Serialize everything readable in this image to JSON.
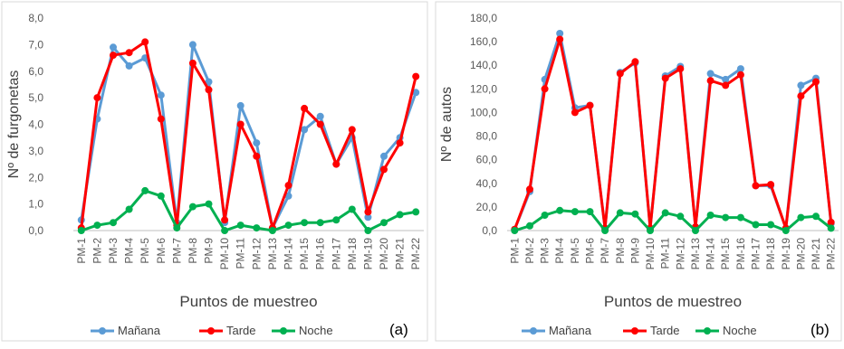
{
  "chart_data": [
    {
      "type": "line",
      "panel_label": "(a)",
      "xlabel": "Puntos de muestreo",
      "ylabel": "Nº de furgonetas",
      "ylim": [
        0,
        8
      ],
      "yticks": [
        "0,0",
        "1,0",
        "2,0",
        "3,0",
        "4,0",
        "5,0",
        "6,0",
        "7,0",
        "8,0"
      ],
      "grid": false,
      "legend_position": "bottom",
      "categories": [
        "PM-1",
        "PM-2",
        "PM-3",
        "PM-4",
        "PM-5",
        "PM-6",
        "PM-7",
        "PM-8",
        "PM-9",
        "PM-10",
        "PM-11",
        "PM-12",
        "PM-13",
        "PM-14",
        "PM-15",
        "PM-16",
        "PM-17",
        "PM-18",
        "PM-19",
        "PM-20",
        "PM-21",
        "PM-22"
      ],
      "series": [
        {
          "name": "Mañana",
          "color": "#5b9bd5",
          "values": [
            0.4,
            4.2,
            6.9,
            6.2,
            6.5,
            5.1,
            0.3,
            7.0,
            5.6,
            0.3,
            4.7,
            3.3,
            0.1,
            1.3,
            3.8,
            4.3,
            2.5,
            3.5,
            0.5,
            2.8,
            3.5,
            5.2
          ]
        },
        {
          "name": "Tarde",
          "color": "#ff0000",
          "values": [
            0.1,
            5.0,
            6.6,
            6.7,
            7.1,
            4.2,
            0.2,
            6.3,
            5.3,
            0.4,
            4.0,
            2.8,
            0.1,
            1.7,
            4.6,
            4.0,
            2.5,
            3.8,
            0.7,
            2.3,
            3.3,
            5.8
          ]
        },
        {
          "name": "Noche",
          "color": "#00b050",
          "values": [
            0.0,
            0.2,
            0.3,
            0.8,
            1.5,
            1.3,
            0.1,
            0.9,
            1.0,
            0.0,
            0.2,
            0.1,
            0.0,
            0.2,
            0.3,
            0.3,
            0.4,
            0.8,
            0.0,
            0.3,
            0.6,
            0.7
          ]
        }
      ]
    },
    {
      "type": "line",
      "panel_label": "(b)",
      "xlabel": "Puntos de muestreo",
      "ylabel": "Nº de autos",
      "ylim": [
        0,
        180
      ],
      "yticks": [
        "0,0",
        "20,0",
        "40,0",
        "60,0",
        "80,0",
        "100,0",
        "120,0",
        "140,0",
        "160,0",
        "180,0"
      ],
      "grid": false,
      "legend_position": "bottom",
      "categories": [
        "PM-1",
        "PM-2",
        "PM-3",
        "PM-4",
        "PM-5",
        "PM-6",
        "PM-7",
        "PM-8",
        "PM-9",
        "PM-10",
        "PM-11",
        "PM-12",
        "PM-13",
        "PM-14",
        "PM-15",
        "PM-16",
        "PM-17",
        "PM-18",
        "PM-19",
        "PM-20",
        "PM-21",
        "PM-22"
      ],
      "series": [
        {
          "name": "Mañana",
          "color": "#5b9bd5",
          "values": [
            1,
            33,
            128,
            167,
            104,
            106,
            2,
            134,
            142,
            2,
            131,
            139,
            3,
            133,
            128,
            137,
            38,
            38,
            2,
            123,
            129,
            6
          ]
        },
        {
          "name": "Tarde",
          "color": "#ff0000",
          "values": [
            1,
            35,
            120,
            162,
            100,
            106,
            2,
            133,
            143,
            2,
            129,
            137,
            3,
            127,
            123,
            132,
            38,
            39,
            2,
            114,
            126,
            7
          ]
        },
        {
          "name": "Noche",
          "color": "#00b050",
          "values": [
            0,
            4,
            13,
            17,
            16,
            16,
            0,
            15,
            14,
            0,
            15,
            12,
            0,
            13,
            11,
            11,
            5,
            5,
            0,
            11,
            12,
            2
          ]
        }
      ]
    }
  ]
}
